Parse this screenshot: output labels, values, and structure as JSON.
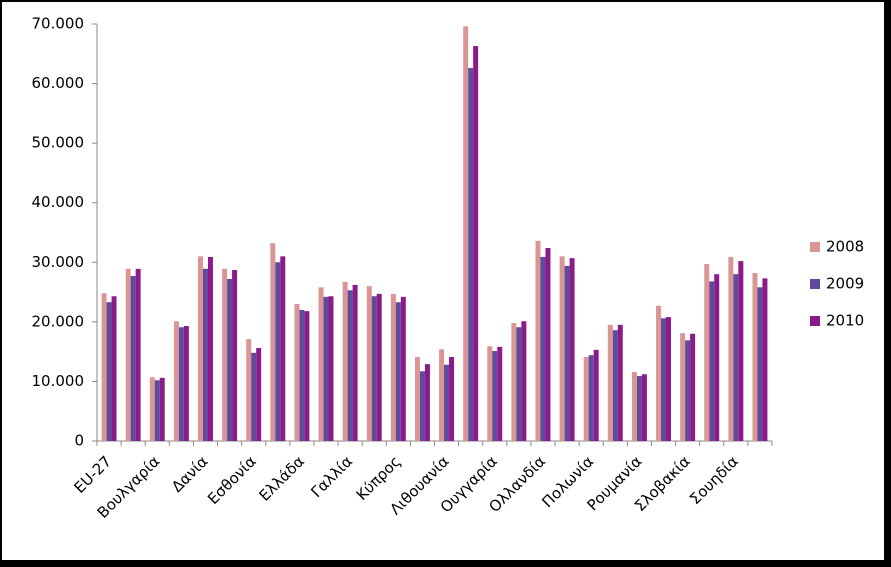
{
  "chart_data": {
    "type": "bar",
    "categories": [
      "EU-27",
      null,
      "Βουλγαρία",
      null,
      "Δανία",
      null,
      "Εσθονία",
      null,
      "Ελλάδα",
      null,
      "Γαλλία",
      null,
      "Κύπρος",
      null,
      "Λιθουανία",
      null,
      "Ουγγαρία",
      null,
      "Ολλανδία",
      null,
      "Πολωνία",
      null,
      "Ρουμανία",
      null,
      "Σλοβακία",
      null,
      "Σουηδία",
      null
    ],
    "series": [
      {
        "name": "2008",
        "color": "#d99694",
        "values": [
          24800,
          28900,
          10700,
          20100,
          31000,
          28900,
          17100,
          33200,
          23000,
          25800,
          26700,
          26000,
          24700,
          14100,
          15400,
          69600,
          15900,
          19800,
          33600,
          31000,
          14100,
          19500,
          11600,
          22700,
          18100,
          29700,
          30900,
          28200
        ]
      },
      {
        "name": "2009",
        "color": "#604a9b",
        "values": [
          23300,
          27700,
          10200,
          19100,
          28900,
          27200,
          14800,
          30000,
          22000,
          24200,
          25300,
          24300,
          23300,
          11700,
          12800,
          62600,
          15100,
          19100,
          30900,
          29400,
          14400,
          18600,
          10900,
          20600,
          16900,
          26800,
          28000,
          25800
        ]
      },
      {
        "name": "2010",
        "color": "#8b1a8b",
        "values": [
          24300,
          28900,
          10600,
          19300,
          30900,
          28700,
          15600,
          31000,
          21800,
          24300,
          26200,
          24700,
          24200,
          12900,
          14100,
          66300,
          15800,
          20100,
          32400,
          30700,
          15300,
          19500,
          11200,
          20800,
          18000,
          28000,
          30200,
          27300
        ]
      }
    ],
    "ylim": [
      0,
      70000
    ],
    "yticks": [
      0,
      {
        "value": 10000,
        "label": "10.000"
      },
      {
        "value": 20000,
        "label": "20.000"
      },
      {
        "value": 30000,
        "label": "30.000"
      },
      {
        "value": 40000,
        "label": "40.000"
      },
      {
        "value": 50000,
        "label": "50.000"
      },
      {
        "value": 60000,
        "label": "60.000"
      },
      {
        "value": 70000,
        "label": "70.000"
      }
    ],
    "grid": false,
    "legend": "right"
  }
}
